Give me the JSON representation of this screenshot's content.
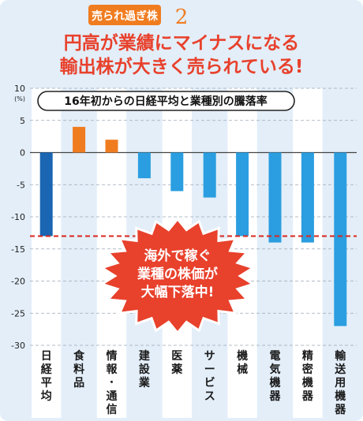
{
  "header": {
    "tag": "売られ過ぎ株",
    "number": "2",
    "headline_line1": "円高が業績にマイナスになる",
    "headline_line2": "輸出株が大きく売られている!"
  },
  "callout": {
    "lines": [
      "海外で稼ぐ",
      "業種の株価が",
      "大幅下落中!"
    ]
  },
  "colors": {
    "background": "#e3eef9",
    "column_band": "#ffffff",
    "header_red": "#e8412c",
    "tag_orange": "#f07c20",
    "bar_nikkei": "#1a66b3",
    "bar_negative": "#2a9ee0",
    "bar_positive": "#f07c20",
    "reference_line": "#d9261c"
  },
  "chart_data": {
    "type": "bar",
    "title": "16年初からの日経平均と業種別の騰落率",
    "ylabel": "",
    "y_unit": "(%)",
    "ylim": [
      -30,
      10
    ],
    "y_ticks": [
      10,
      5,
      0,
      -5,
      -10,
      -15,
      -20,
      -25,
      -30
    ],
    "grid": true,
    "reference_value": -13,
    "categories": [
      "日経平均",
      "食料品",
      "情報・通信",
      "建設業",
      "医薬",
      "サービス",
      "機械",
      "電気機器",
      "精密機器",
      "輸送用機器"
    ],
    "values": [
      -13,
      4,
      2,
      -4,
      -6,
      -7,
      -13,
      -14,
      -14,
      -27
    ]
  }
}
